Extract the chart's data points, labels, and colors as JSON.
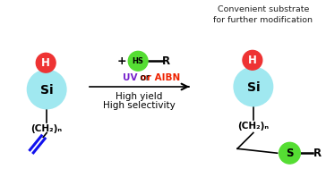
{
  "bg_color": "#ffffff",
  "si_color": "#a0e8f0",
  "h_color": "#ee3333",
  "hs_color": "#55dd33",
  "s_color": "#55dd33",
  "uv_color": "#7722cc",
  "aibn_color": "#ee2200",
  "alkene_color": "#1111ee",
  "title_text": "Convenient substrate\nfor further modification",
  "uv_text": "UV",
  "or_text": " or ",
  "aibn_text": "AIBN",
  "yield_text": "High yield",
  "selectivity_text": "High selectivity",
  "ch2_text": "(CH₂)ₙ",
  "hs_label": "HS",
  "r_label": "R",
  "h_label": "H",
  "si_label": "Si",
  "s_label": "S",
  "plus_label": "+"
}
